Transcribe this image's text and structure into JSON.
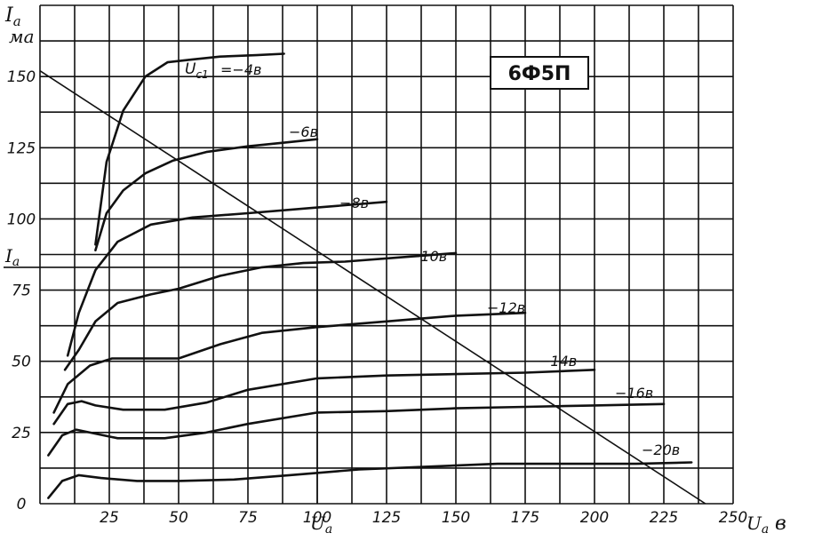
{
  "chart_data": {
    "type": "line",
    "title": "6Ф5П",
    "xlabel": "U",
    "xlabel_sub": "a",
    "xlabel_unit": "в",
    "ylabel": "I",
    "ylabel_sub": "a",
    "ylabel_unit": "ма",
    "xlim": [
      0,
      250
    ],
    "ylim": [
      0,
      175
    ],
    "x_ticks": [
      25,
      50,
      75,
      100,
      125,
      150,
      175,
      200,
      225,
      250
    ],
    "y_ticks": [
      0,
      25,
      50,
      75,
      100,
      125,
      150
    ],
    "grid": true,
    "series_label_prefix": "U",
    "series_label_prefix_sub": "c1",
    "series": [
      {
        "name": "−4в",
        "label": "=−4в",
        "x": [
          20,
          24,
          30,
          38,
          46,
          55,
          65,
          78,
          88
        ],
        "y": [
          91,
          120,
          138,
          150,
          155,
          156,
          157,
          157.5,
          158
        ]
      },
      {
        "name": "−6в",
        "label": "−6в",
        "x": [
          20,
          24,
          30,
          38,
          48,
          60,
          75,
          90,
          100
        ],
        "y": [
          89,
          102,
          110,
          116,
          120.5,
          123.5,
          125.5,
          127,
          128
        ]
      },
      {
        "name": "−8в",
        "label": "−8в",
        "x": [
          10,
          14,
          20,
          28,
          40,
          55,
          75,
          100,
          125
        ],
        "y": [
          52,
          67,
          82,
          92,
          98,
          100.5,
          102,
          104,
          106
        ]
      },
      {
        "name": "−10в",
        "label": "−10в",
        "x": [
          9,
          14,
          20,
          28,
          40,
          50,
          65,
          80,
          95,
          110,
          130,
          150
        ],
        "y": [
          47,
          54,
          64,
          70.5,
          73.5,
          75.5,
          80,
          83,
          84.5,
          85,
          86.5,
          88
        ]
      },
      {
        "name": "−12в",
        "label": "−12в",
        "x": [
          5,
          10,
          18,
          26,
          35,
          50,
          65,
          80,
          100,
          125,
          150,
          175
        ],
        "y": [
          32,
          42,
          48.5,
          51,
          51,
          51,
          56,
          60,
          62,
          64,
          66,
          67
        ]
      },
      {
        "name": "−14в",
        "label": "−14в",
        "x": [
          5,
          10,
          15,
          20,
          30,
          45,
          60,
          75,
          100,
          125,
          150,
          175,
          200
        ],
        "y": [
          28,
          35,
          36,
          34.5,
          33,
          33,
          35.5,
          40,
          44,
          45,
          45.5,
          46,
          47
        ]
      },
      {
        "name": "−16в",
        "label": "−16в",
        "x": [
          3,
          8,
          13,
          18,
          28,
          45,
          60,
          75,
          100,
          125,
          150,
          175,
          200,
          225
        ],
        "y": [
          17,
          24,
          26,
          25,
          23,
          23,
          25,
          28,
          32,
          32.5,
          33.5,
          34,
          34.5,
          35
        ]
      },
      {
        "name": "−20в",
        "label": "−20в",
        "x": [
          3,
          8,
          14,
          22,
          35,
          50,
          70,
          90,
          115,
          140,
          165,
          190,
          215,
          235
        ],
        "y": [
          2,
          8,
          10,
          9,
          8,
          8,
          8.5,
          10,
          12,
          13,
          14,
          14,
          14,
          14.5
        ]
      }
    ],
    "load_line": {
      "x": [
        0,
        240
      ],
      "y": [
        152,
        0
      ]
    },
    "operating_point": {
      "x": 100,
      "y": 83,
      "xlabel": "U",
      "xlabel_sub": "a",
      "ylabel": "I",
      "ylabel_sub": "a"
    }
  }
}
